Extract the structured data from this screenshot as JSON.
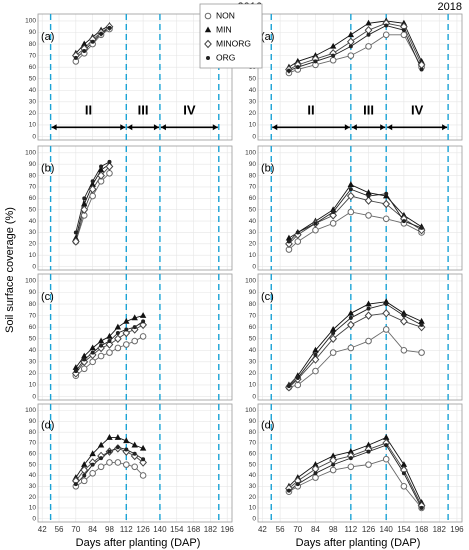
{
  "y_label": "Soil surface coverage (%)",
  "x_label": "Days after planting (DAP)",
  "column_titles": [
    "2016",
    "2018"
  ],
  "axes": {
    "xlim": [
      38.5,
      200
    ],
    "xticks": [
      42,
      56,
      70,
      84,
      98,
      112,
      126,
      140,
      154,
      168,
      182,
      196
    ],
    "ylim": [
      -3,
      106
    ],
    "yticks": [
      0,
      10,
      20,
      30,
      40,
      50,
      60,
      70,
      80,
      90,
      100
    ],
    "grid": true
  },
  "phase_lines": [
    49,
    112,
    140,
    189
  ],
  "phases": [
    {
      "label": "II",
      "span": [
        49,
        112
      ]
    },
    {
      "label": "III",
      "span": [
        112,
        140
      ]
    },
    {
      "label": "IV",
      "span": [
        140,
        189
      ]
    }
  ],
  "series_styles": [
    {
      "name": "NON",
      "color": "#6a6a6a",
      "marker": "circle-open"
    },
    {
      "name": "MIN",
      "color": "#111111",
      "marker": "triangle"
    },
    {
      "name": "MINORG",
      "color": "#444444",
      "marker": "diamond-open"
    },
    {
      "name": "ORG",
      "color": "#222222",
      "marker": "dot"
    }
  ],
  "chart_data": [
    {
      "type": "line",
      "panel_label": "(a)",
      "x": [
        70,
        77,
        84,
        91,
        98
      ],
      "series": [
        {
          "values": [
            65,
            72,
            80,
            88,
            93
          ]
        },
        {
          "values": [
            72,
            80,
            86,
            92,
            96
          ]
        },
        {
          "values": [
            70,
            76,
            84,
            90,
            95
          ]
        },
        {
          "values": [
            68,
            74,
            82,
            89,
            94
          ]
        }
      ]
    },
    {
      "type": "line",
      "panel_label": "(a)",
      "x": [
        63,
        70,
        84,
        98,
        112,
        126,
        140,
        154,
        168
      ],
      "series": [
        {
          "values": [
            55,
            58,
            62,
            66,
            70,
            78,
            88,
            88,
            60
          ]
        },
        {
          "values": [
            60,
            65,
            70,
            78,
            88,
            98,
            100,
            98,
            65
          ]
        },
        {
          "values": [
            58,
            62,
            67,
            72,
            82,
            92,
            98,
            95,
            62
          ]
        },
        {
          "values": [
            57,
            60,
            65,
            70,
            78,
            88,
            96,
            92,
            58
          ]
        }
      ]
    },
    {
      "type": "line",
      "panel_label": "(b)",
      "x": [
        70,
        77,
        84,
        91,
        98
      ],
      "series": [
        {
          "values": [
            22,
            45,
            62,
            75,
            82
          ]
        },
        {
          "values": [
            25,
            55,
            72,
            85,
            90
          ]
        },
        {
          "values": [
            22,
            50,
            68,
            80,
            88
          ]
        },
        {
          "values": [
            30,
            60,
            75,
            88,
            92
          ]
        }
      ]
    },
    {
      "type": "line",
      "panel_label": "(b)",
      "x": [
        63,
        70,
        84,
        98,
        112,
        126,
        140,
        154,
        168
      ],
      "series": [
        {
          "values": [
            15,
            22,
            32,
            38,
            48,
            45,
            42,
            38,
            30
          ]
        },
        {
          "values": [
            25,
            30,
            40,
            50,
            72,
            65,
            62,
            45,
            35
          ]
        },
        {
          "values": [
            20,
            28,
            38,
            45,
            62,
            58,
            55,
            42,
            32
          ]
        },
        {
          "values": [
            22,
            30,
            38,
            48,
            68,
            62,
            64,
            40,
            34
          ]
        }
      ]
    },
    {
      "type": "line",
      "panel_label": "(c)",
      "x": [
        70,
        77,
        84,
        91,
        98,
        105,
        112,
        119,
        126
      ],
      "series": [
        {
          "values": [
            18,
            24,
            30,
            35,
            38,
            42,
            45,
            48,
            52
          ]
        },
        {
          "values": [
            25,
            35,
            42,
            48,
            52,
            60,
            65,
            68,
            70
          ]
        },
        {
          "values": [
            20,
            30,
            36,
            42,
            45,
            50,
            55,
            58,
            62
          ]
        },
        {
          "values": [
            22,
            32,
            38,
            44,
            48,
            55,
            58,
            60,
            65
          ]
        }
      ]
    },
    {
      "type": "line",
      "panel_label": "(c)",
      "x": [
        63,
        70,
        84,
        98,
        112,
        126,
        140,
        154,
        168
      ],
      "series": [
        {
          "values": [
            8,
            10,
            22,
            38,
            42,
            48,
            58,
            40,
            38
          ]
        },
        {
          "values": [
            10,
            18,
            40,
            58,
            72,
            80,
            82,
            72,
            65
          ]
        },
        {
          "values": [
            8,
            15,
            32,
            50,
            62,
            70,
            72,
            65,
            60
          ]
        },
        {
          "values": [
            9,
            16,
            36,
            55,
            68,
            76,
            80,
            70,
            62
          ]
        }
      ]
    },
    {
      "type": "line",
      "panel_label": "(d)",
      "x": [
        70,
        77,
        84,
        91,
        98,
        105,
        112,
        119,
        126
      ],
      "series": [
        {
          "values": [
            30,
            35,
            42,
            48,
            52,
            52,
            50,
            48,
            40
          ]
        },
        {
          "values": [
            38,
            50,
            60,
            68,
            75,
            75,
            72,
            68,
            65
          ]
        },
        {
          "values": [
            35,
            45,
            52,
            58,
            62,
            65,
            62,
            58,
            52
          ]
        },
        {
          "values": [
            32,
            40,
            50,
            56,
            62,
            66,
            64,
            60,
            55
          ]
        }
      ]
    },
    {
      "type": "line",
      "panel_label": "(d)",
      "x": [
        63,
        70,
        84,
        98,
        112,
        126,
        140,
        154,
        168
      ],
      "series": [
        {
          "values": [
            25,
            30,
            38,
            45,
            48,
            50,
            55,
            30,
            10
          ]
        },
        {
          "values": [
            30,
            38,
            50,
            58,
            62,
            68,
            75,
            50,
            15
          ]
        },
        {
          "values": [
            28,
            35,
            46,
            54,
            58,
            64,
            70,
            45,
            12
          ]
        },
        {
          "values": [
            26,
            32,
            42,
            50,
            56,
            62,
            68,
            42,
            10
          ]
        }
      ]
    }
  ]
}
